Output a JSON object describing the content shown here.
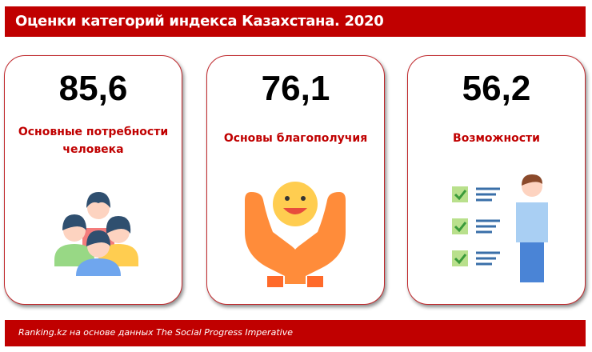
{
  "header": {
    "title": "Оценки категорий индекса Казахстана. 2020"
  },
  "cards": [
    {
      "value": "85,6",
      "label_line1": "Основные потребности",
      "label_line2": "человека",
      "icon": "people-group-icon"
    },
    {
      "value": "76,1",
      "label_line1": "Основы благополучия",
      "label_line2": "",
      "icon": "hands-smiley-icon"
    },
    {
      "value": "56,2",
      "label_line1": "Возможности",
      "label_line2": "",
      "icon": "person-checklist-icon"
    }
  ],
  "footer": {
    "source": "Ranking.kz на основе данных The Social Progress Imperative"
  },
  "colors": {
    "accent": "#c00000",
    "card_border": "#c0282c"
  }
}
